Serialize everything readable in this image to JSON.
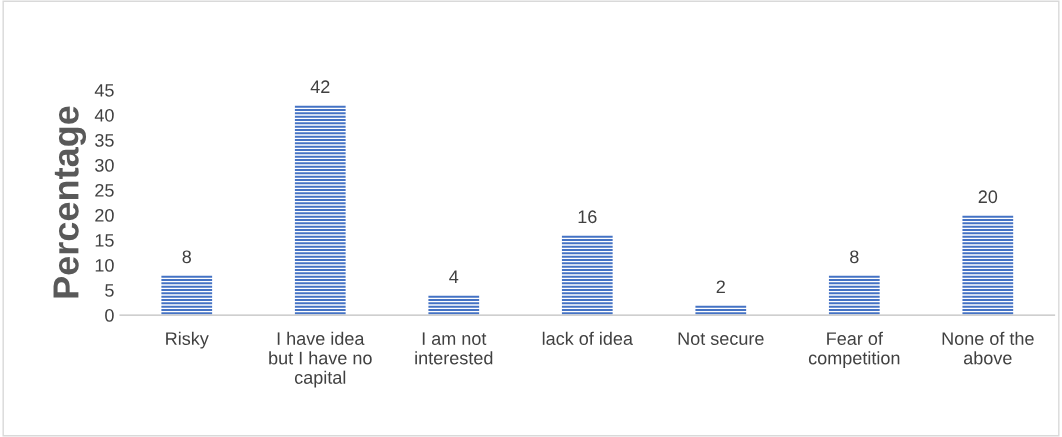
{
  "chart_data": {
    "type": "bar",
    "ylabel": "Percentage",
    "categories": [
      "Risky",
      "I have idea\nbut I have no\ncapital",
      "I am not\ninterested",
      "lack of idea",
      "Not secure",
      "Fear of\ncompetition",
      "None of the\nabove"
    ],
    "values": [
      8,
      42,
      4,
      16,
      2,
      8,
      20
    ],
    "color": "#4472c4",
    "ylim": [
      0,
      45
    ],
    "yticks": [
      0,
      5,
      10,
      15,
      20,
      25,
      30,
      35,
      40,
      45
    ],
    "data_labels": true,
    "grid": false
  }
}
